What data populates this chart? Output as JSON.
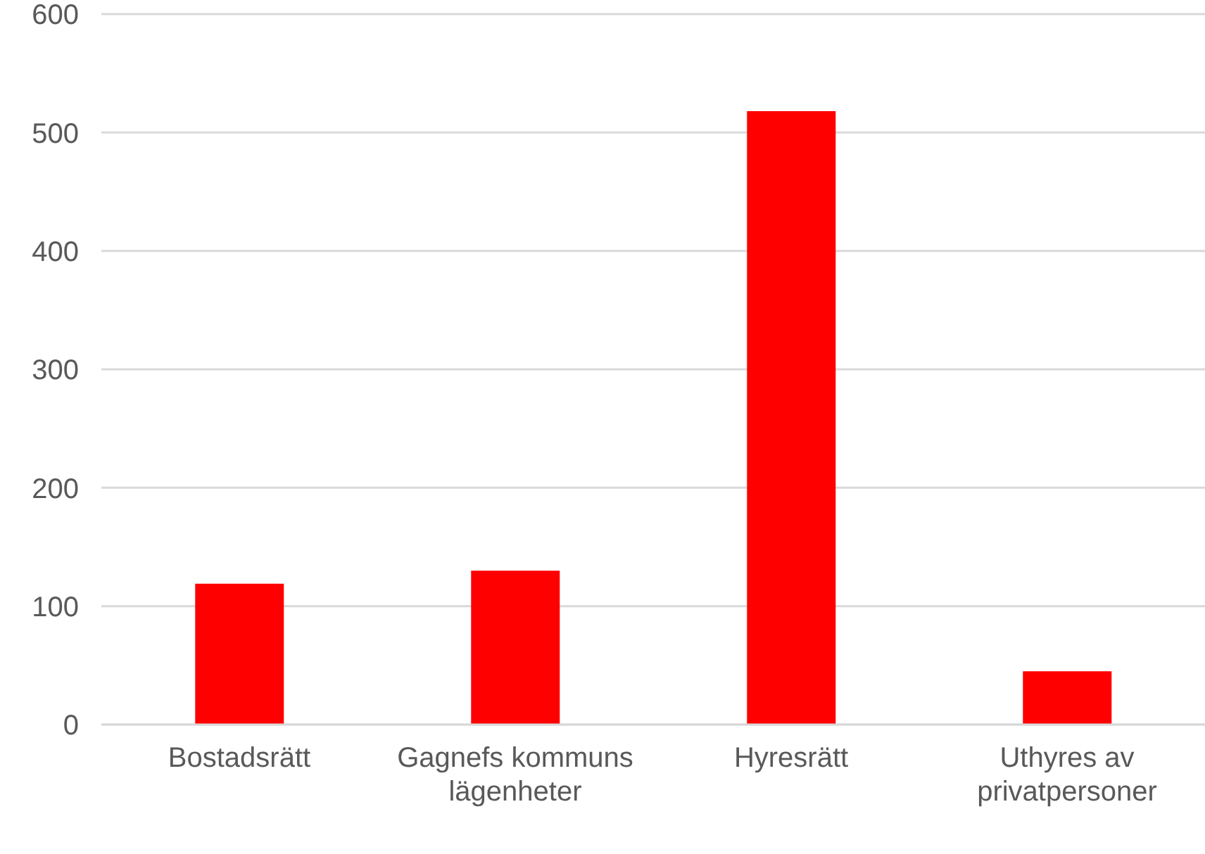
{
  "chart_data": {
    "type": "bar",
    "categories": [
      "Bostadsrätt",
      "Gagnefs kommuns lägenheter",
      "Hyresrätt",
      "Uthyres av privatpersoner"
    ],
    "values": [
      119,
      130,
      518,
      45
    ],
    "color": "#ff0000",
    "ylim": [
      0,
      600
    ],
    "yticks": [
      0,
      100,
      200,
      300,
      400,
      500,
      600
    ],
    "grid": "y"
  }
}
